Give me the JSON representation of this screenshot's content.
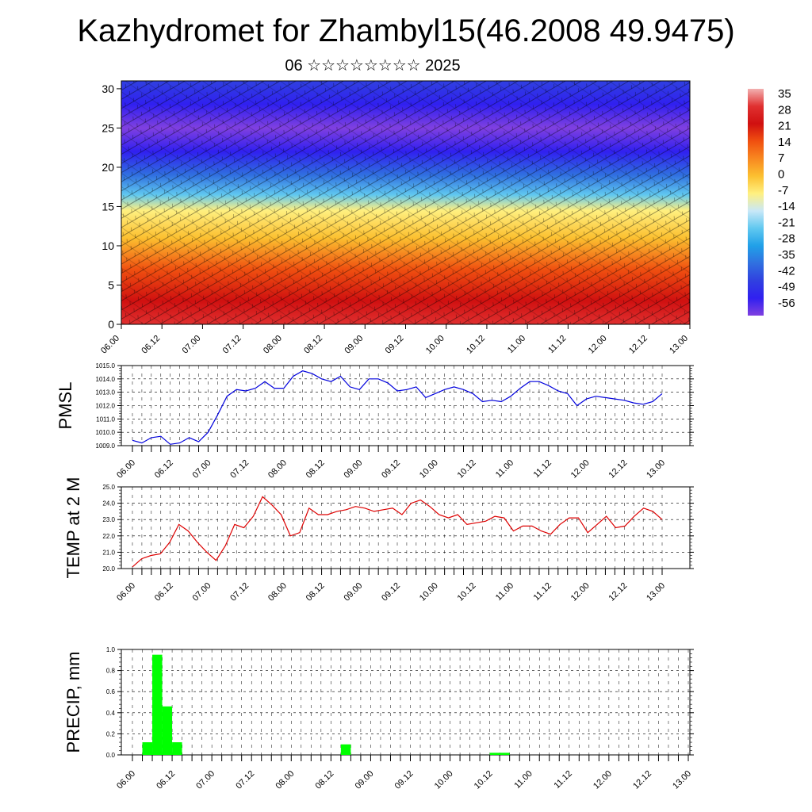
{
  "title": "Kazhydromet for Zhambyl15(46.2008 49.9475)",
  "subtitle": "06 ☆☆☆☆☆☆☆☆ 2025",
  "chart_data": [
    {
      "id": "temperature-cross-section",
      "type": "heatmap",
      "x_tick_labels": [
        "06.00",
        "06.12",
        "07.00",
        "07.12",
        "08.00",
        "08.12",
        "09.00",
        "09.12",
        "10.00",
        "10.12",
        "11.00",
        "11.12",
        "12.00",
        "12.12",
        "13.00"
      ],
      "y_ticks": [
        0,
        5,
        10,
        15,
        20,
        25,
        30
      ],
      "ylim": [
        0,
        31
      ],
      "vectors": "wind barbs overlay",
      "colorbar": {
        "labels": [
          "35",
          "28",
          "21",
          "14",
          "7",
          "0",
          "-7",
          "-14",
          "-21",
          "-28",
          "-35",
          "-42",
          "-49",
          "-56"
        ],
        "colors": [
          "#f2b0b0",
          "#e03030",
          "#d01010",
          "#f05010",
          "#f88820",
          "#fcc030",
          "#fff080",
          "#c8e8f8",
          "#60c8f0",
          "#20a0e8",
          "#3070e0",
          "#3040e0",
          "#3020f0",
          "#8040e0"
        ]
      },
      "profile": [
        {
          "level": 0,
          "value": 28
        },
        {
          "level": 3,
          "value": 24
        },
        {
          "level": 7,
          "value": 14
        },
        {
          "level": 11,
          "value": 3
        },
        {
          "level": 14.5,
          "value": -7
        },
        {
          "level": 16.5,
          "value": -18
        },
        {
          "level": 19,
          "value": -35
        },
        {
          "level": 22,
          "value": -52
        },
        {
          "level": 25,
          "value": -58
        },
        {
          "level": 28,
          "value": -52
        },
        {
          "level": 31,
          "value": -42
        }
      ]
    },
    {
      "id": "pmsl",
      "type": "line",
      "ylabel": "PMSL",
      "color": "#0000dd",
      "ylim": [
        1009.0,
        1015.0
      ],
      "y_tick_labels": [
        "1009.0",
        "1010.0",
        "1011.0",
        "1012.0",
        "1013.0",
        "1014.0",
        "1015.0"
      ],
      "x_tick_labels": [
        "06.00",
        "06.12",
        "07.00",
        "07.12",
        "08.00",
        "08.12",
        "09.00",
        "09.12",
        "10.00",
        "10.12",
        "11.00",
        "11.12",
        "12.00",
        "12.12",
        "13.00"
      ],
      "values": [
        1009.4,
        1009.2,
        1009.6,
        1009.7,
        1009.1,
        1009.2,
        1009.6,
        1009.3,
        1010.0,
        1011.3,
        1012.7,
        1013.2,
        1013.1,
        1013.3,
        1013.8,
        1013.3,
        1013.3,
        1014.2,
        1014.6,
        1014.4,
        1014.0,
        1013.8,
        1014.2,
        1013.4,
        1013.2,
        1014.0,
        1014.0,
        1013.7,
        1013.1,
        1013.2,
        1013.4,
        1012.6,
        1012.9,
        1013.2,
        1013.4,
        1013.2,
        1012.9,
        1012.3,
        1012.4,
        1012.3,
        1012.7,
        1013.3,
        1013.8,
        1013.8,
        1013.5,
        1013.1,
        1012.9,
        1012.0,
        1012.5,
        1012.7,
        1012.6,
        1012.5,
        1012.4,
        1012.2,
        1012.1,
        1012.3,
        1012.9
      ]
    },
    {
      "id": "temp-2m",
      "type": "line",
      "ylabel": "TEMP at 2 M",
      "color": "#dd0000",
      "ylim": [
        20.0,
        25.0
      ],
      "y_tick_labels": [
        "20.0",
        "21.0",
        "22.0",
        "23.0",
        "24.0",
        "25.0"
      ],
      "x_tick_labels": [
        "06.00",
        "06.12",
        "07.00",
        "07.12",
        "08.00",
        "08.12",
        "09.00",
        "09.12",
        "10.00",
        "10.12",
        "11.00",
        "11.12",
        "12.00",
        "12.12",
        "13.00"
      ],
      "values": [
        20.1,
        20.6,
        20.8,
        20.9,
        21.6,
        22.7,
        22.3,
        21.6,
        21.0,
        20.5,
        21.4,
        22.7,
        22.5,
        23.2,
        24.4,
        23.9,
        23.3,
        22.0,
        22.2,
        23.7,
        23.3,
        23.3,
        23.5,
        23.6,
        23.8,
        23.7,
        23.5,
        23.6,
        23.7,
        23.3,
        24.0,
        24.2,
        23.8,
        23.3,
        23.1,
        23.3,
        22.7,
        22.8,
        22.9,
        23.2,
        23.1,
        22.3,
        22.6,
        22.6,
        22.3,
        22.1,
        22.7,
        23.1,
        23.1,
        22.2,
        22.7,
        23.2,
        22.5,
        22.6,
        23.2,
        23.7,
        23.5,
        23.0
      ]
    },
    {
      "id": "precip",
      "type": "bar",
      "ylabel": "PRECIP, mm",
      "color": "#00ff00",
      "ylim": [
        0.0,
        1.0
      ],
      "y_tick_labels": [
        "0.0",
        "0.2",
        "0.4",
        "0.6",
        "0.8",
        "1.0"
      ],
      "x_tick_labels": [
        "06.00",
        "06.12",
        "07.00",
        "07.12",
        "08.00",
        "08.12",
        "09.00",
        "09.12",
        "10.00",
        "10.12",
        "11.00",
        "11.12",
        "12.00",
        "12.12",
        "13.00"
      ],
      "bars": [
        {
          "start_step": 1,
          "end_step": 2,
          "value": 0.12
        },
        {
          "start_step": 2,
          "end_step": 3,
          "value": 0.95
        },
        {
          "start_step": 3,
          "end_step": 4,
          "value": 0.46
        },
        {
          "start_step": 4,
          "end_step": 5,
          "value": 0.12
        },
        {
          "start_step": 21,
          "end_step": 22,
          "value": 0.1
        },
        {
          "start_step": 36,
          "end_step": 38,
          "value": 0.02
        }
      ]
    }
  ]
}
